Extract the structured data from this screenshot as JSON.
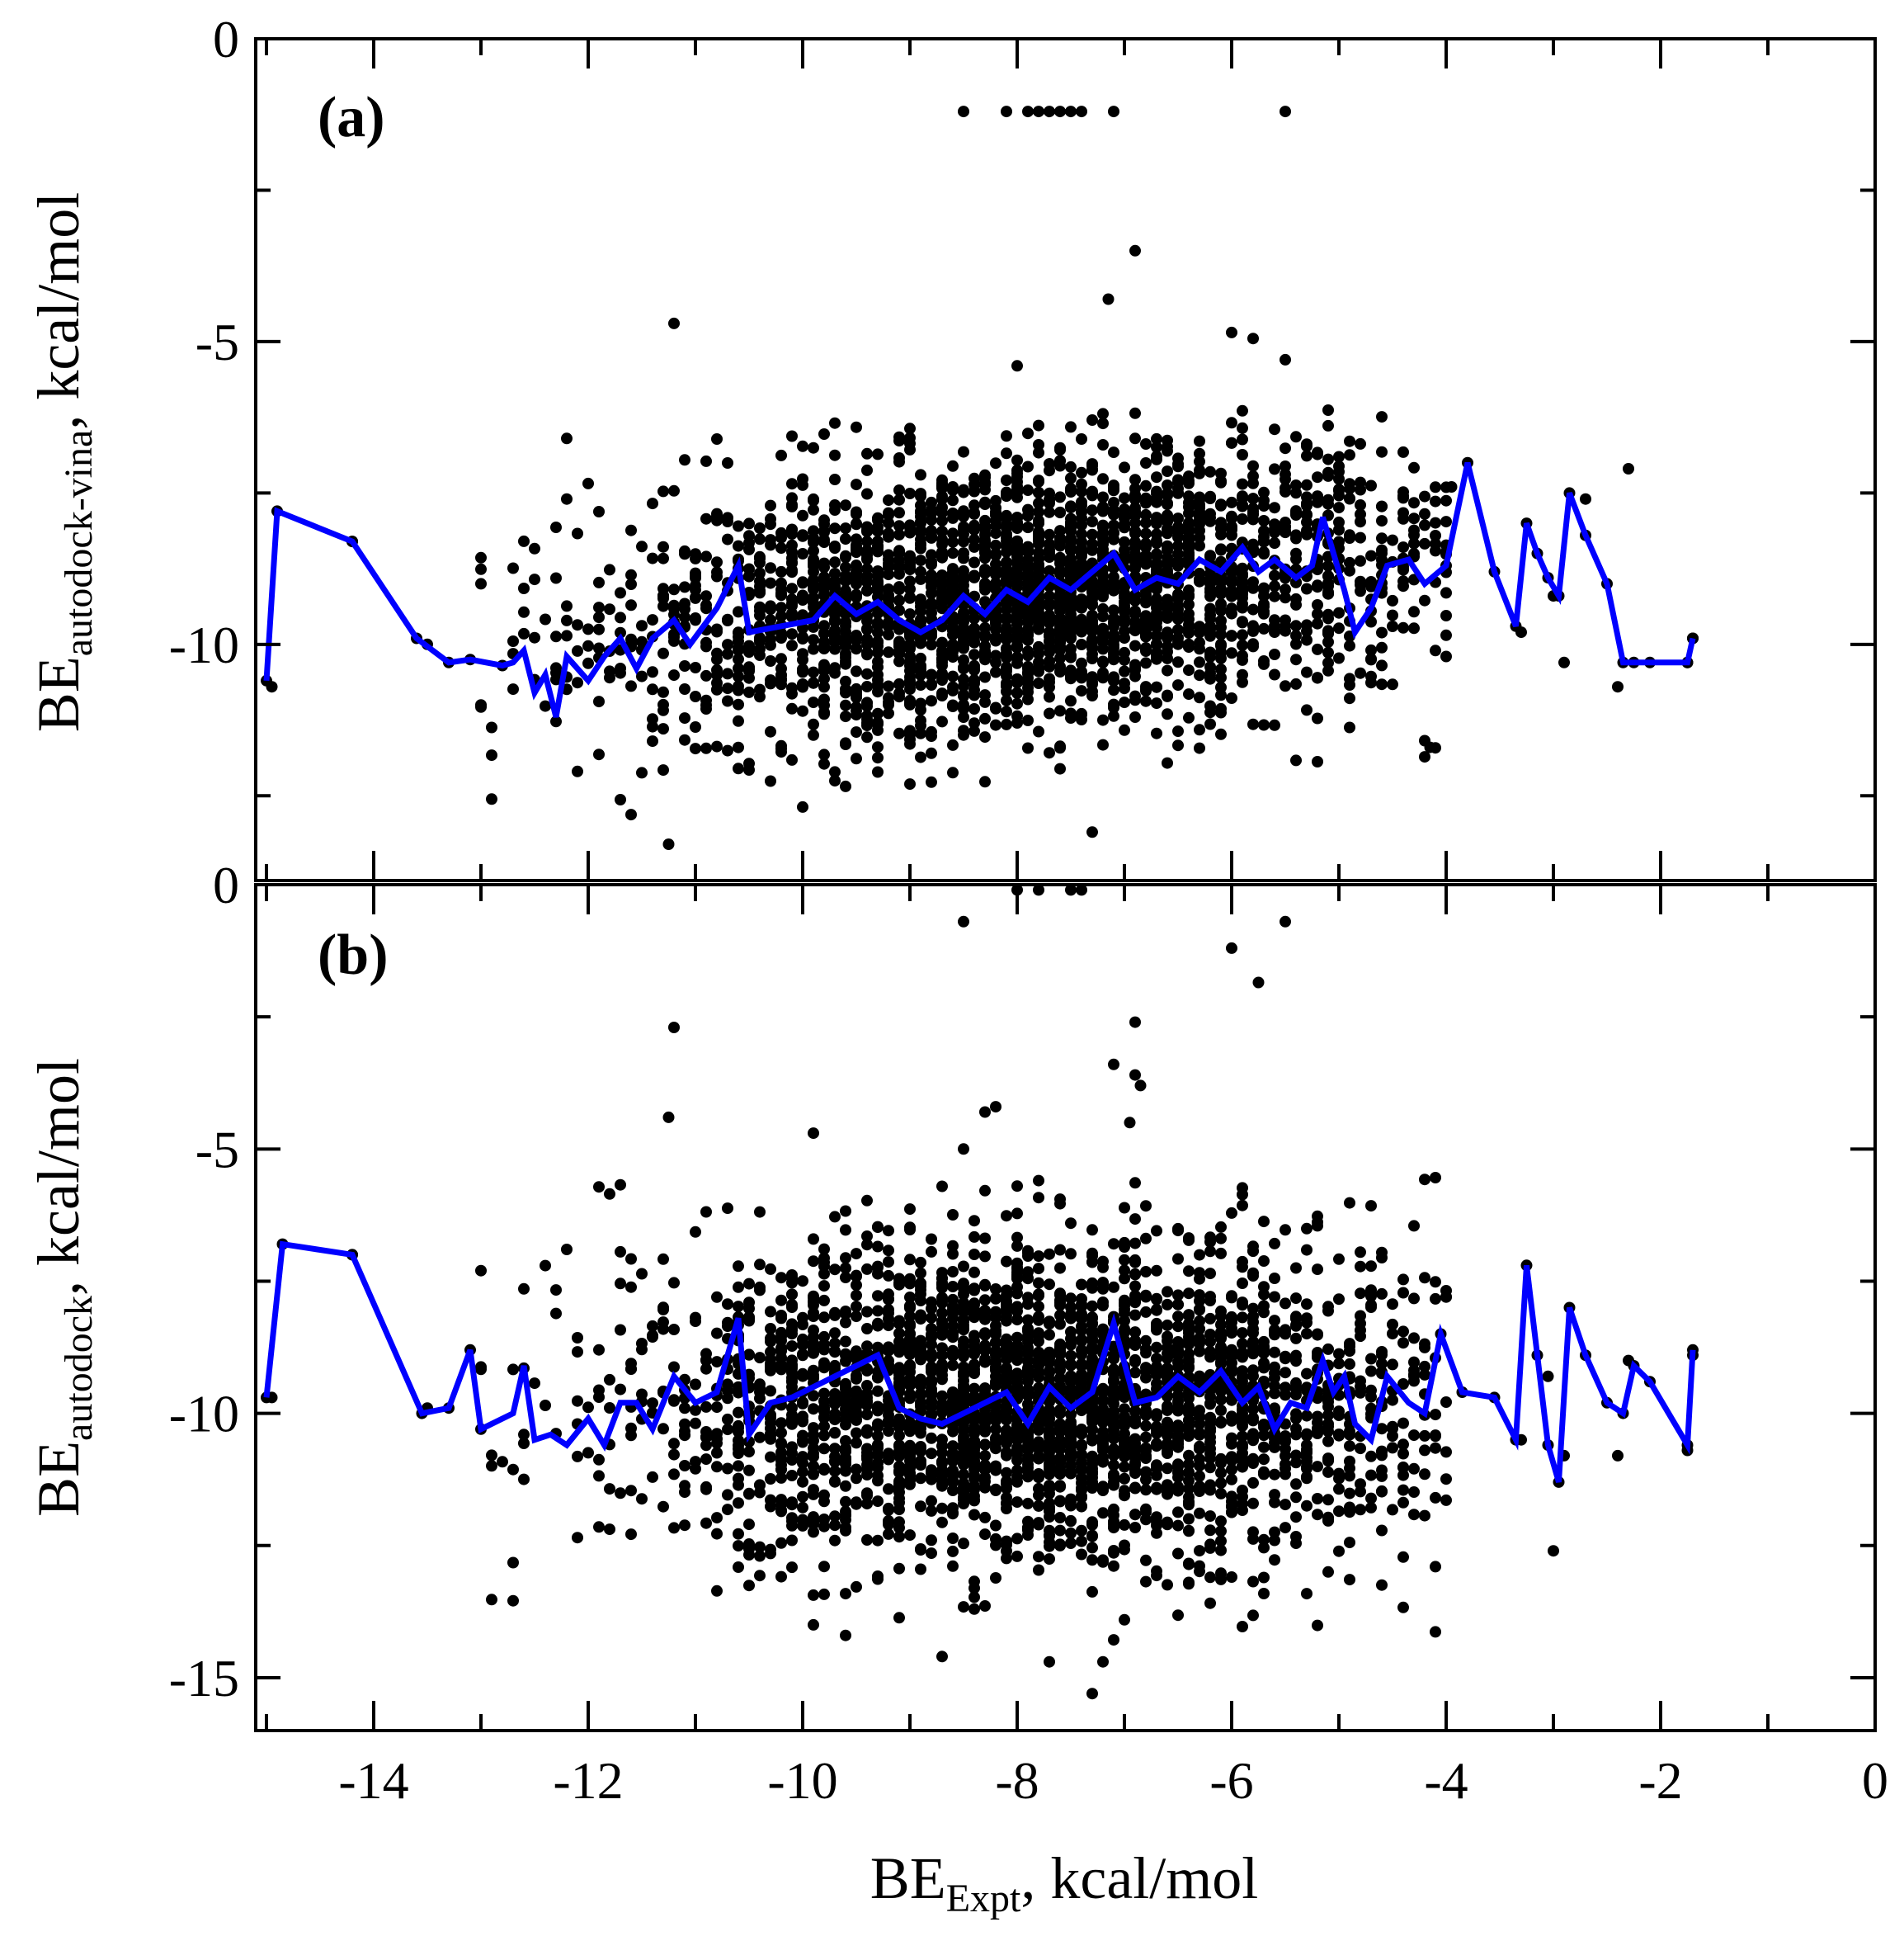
{
  "chart_data": [
    {
      "type": "scatter",
      "panel_label": "(a)",
      "ylabel": "BE",
      "ylabel_sub": "autodock-vina",
      "ylabel_suffix": ", kcal/mol",
      "ylim": [
        -13.9,
        0
      ],
      "yticks": [
        0,
        -5,
        -10
      ],
      "xlim": [
        -15.1,
        0
      ],
      "grid": false,
      "scatter": {
        "seed": 11,
        "count": 2600,
        "x_mean": -7.9,
        "x_sd": 1.9,
        "y_intercept": -9.1,
        "y_slope": 0.17,
        "y_sd": 1.15,
        "y_min": -12.9,
        "y_max": -6.1
      },
      "outliers": [
        [
          -8.5,
          -1.2
        ],
        [
          -8.1,
          -1.2
        ],
        [
          -7.9,
          -1.2
        ],
        [
          -7.8,
          -1.2
        ],
        [
          -7.7,
          -1.2
        ],
        [
          -7.6,
          -1.2
        ],
        [
          -7.5,
          -1.2
        ],
        [
          -7.4,
          -1.2
        ],
        [
          -7.1,
          -1.2
        ],
        [
          -5.5,
          -1.2
        ],
        [
          -6.9,
          -3.5
        ],
        [
          -7.15,
          -4.3
        ],
        [
          -11.2,
          -4.7
        ],
        [
          -6.0,
          -4.85
        ],
        [
          -5.8,
          -4.95
        ],
        [
          -8.0,
          -5.4
        ],
        [
          -5.5,
          -5.3
        ],
        [
          -7.3,
          -13.1
        ],
        [
          -14.95,
          -10.7
        ],
        [
          -14.2,
          -8.3
        ],
        [
          -13.5,
          -10.0
        ],
        [
          -13.0,
          -9.0
        ],
        [
          -13.0,
          -11.0
        ],
        [
          -12.2,
          -6.6
        ],
        [
          -12.2,
          -7.6
        ],
        [
          -11.25,
          -13.3
        ],
        [
          -3.95,
          -7.4
        ],
        [
          -3.3,
          -9.8
        ],
        [
          -3.0,
          -9.2
        ],
        [
          -2.7,
          -7.6
        ],
        [
          -2.3,
          -7.1
        ],
        [
          -2.4,
          -10.7
        ],
        [
          -2.9,
          -10.3
        ],
        [
          -1.75,
          -10.3
        ],
        [
          -1.7,
          -9.9
        ],
        [
          -4.15,
          -11.7
        ],
        [
          -4.0,
          -10.2
        ]
      ],
      "line": {
        "name": "moving average",
        "color": "#0000ff",
        "x": [
          -15.0,
          -14.9,
          -14.2,
          -13.6,
          -13.3,
          -13.1,
          -12.8,
          -12.7,
          -12.6,
          -12.5,
          -12.4,
          -12.3,
          -12.2,
          -12.0,
          -11.85,
          -11.7,
          -11.55,
          -11.4,
          -11.2,
          -11.05,
          -10.8,
          -10.6,
          -10.5,
          -10.2,
          -9.9,
          -9.7,
          -9.5,
          -9.3,
          -9.1,
          -8.9,
          -8.7,
          -8.5,
          -8.3,
          -8.1,
          -7.9,
          -7.7,
          -7.5,
          -7.3,
          -7.1,
          -6.9,
          -6.7,
          -6.5,
          -6.3,
          -6.1,
          -5.9,
          -5.75,
          -5.6,
          -5.4,
          -5.25,
          -5.15,
          -5.05,
          -4.95,
          -4.85,
          -4.7,
          -4.55,
          -4.35,
          -4.2,
          -4.0,
          -3.8,
          -3.55,
          -3.35,
          -3.25,
          -3.15,
          -3.05,
          -2.95,
          -2.85,
          -2.7,
          -2.5,
          -2.35,
          -2.25,
          -2.1,
          -1.75,
          -1.7
        ],
        "y": [
          -10.6,
          -7.8,
          -8.3,
          -9.9,
          -10.3,
          -10.25,
          -10.35,
          -10.3,
          -10.1,
          -10.8,
          -10.5,
          -11.2,
          -10.2,
          -10.6,
          -10.2,
          -9.9,
          -10.4,
          -9.9,
          -9.6,
          -10.0,
          -9.4,
          -8.7,
          -9.8,
          -9.7,
          -9.6,
          -9.2,
          -9.5,
          -9.3,
          -9.6,
          -9.8,
          -9.6,
          -9.2,
          -9.5,
          -9.1,
          -9.3,
          -8.9,
          -9.1,
          -8.8,
          -8.5,
          -9.1,
          -8.9,
          -9.0,
          -8.6,
          -8.8,
          -8.4,
          -8.8,
          -8.6,
          -8.9,
          -8.7,
          -7.9,
          -8.5,
          -9.1,
          -9.8,
          -9.4,
          -8.7,
          -8.6,
          -9.0,
          -8.7,
          -7.0,
          -8.8,
          -9.7,
          -8.0,
          -8.5,
          -8.9,
          -9.2,
          -7.5,
          -8.2,
          -9.0,
          -10.3,
          -10.3,
          -10.3,
          -10.3,
          -9.9
        ]
      }
    },
    {
      "type": "scatter",
      "panel_label": "(b)",
      "ylabel": "BE",
      "ylabel_sub": "autodock",
      "ylabel_suffix": ", kcal/mol",
      "ylim": [
        -16,
        0
      ],
      "yticks": [
        0,
        -5,
        -10,
        -15
      ],
      "xlim": [
        -15.1,
        0
      ],
      "xticks": [
        -14,
        -12,
        -10,
        -8,
        -6,
        -4,
        -2,
        0
      ],
      "xlabel": "BE",
      "xlabel_sub": "Expt",
      "xlabel_suffix": ", kcal/mol",
      "grid": false,
      "scatter": {
        "seed": 29,
        "count": 2800,
        "x_mean": -7.8,
        "x_sd": 1.9,
        "y_intercept": -9.8,
        "y_slope": 0.0,
        "y_sd": 1.55,
        "y_min": -14.4,
        "y_max": -5.5
      },
      "outliers": [
        [
          -8.0,
          -0.1
        ],
        [
          -7.8,
          -0.1
        ],
        [
          -7.5,
          -0.1
        ],
        [
          -7.4,
          -0.1
        ],
        [
          -8.5,
          -0.7
        ],
        [
          -5.5,
          -0.7
        ],
        [
          -6.0,
          -1.2
        ],
        [
          -5.75,
          -1.85
        ],
        [
          -11.2,
          -2.7
        ],
        [
          -6.9,
          -2.6
        ],
        [
          -7.1,
          -3.4
        ],
        [
          -6.9,
          -3.6
        ],
        [
          -6.85,
          -3.8
        ],
        [
          -11.25,
          -4.4
        ],
        [
          -8.2,
          -4.2
        ],
        [
          -8.3,
          -4.3
        ],
        [
          -6.95,
          -4.5
        ],
        [
          -9.9,
          -4.7
        ],
        [
          -8.5,
          -5.0
        ],
        [
          -7.3,
          -15.3
        ],
        [
          -9.6,
          -14.2
        ],
        [
          -8.7,
          -14.6
        ],
        [
          -7.7,
          -14.7
        ],
        [
          -7.2,
          -14.7
        ],
        [
          -14.95,
          -9.7
        ],
        [
          -14.2,
          -7.0
        ],
        [
          -13.5,
          -9.9
        ],
        [
          -13.0,
          -7.3
        ],
        [
          -12.2,
          -6.9
        ],
        [
          -2.9,
          -10.8
        ],
        [
          -3.0,
          -12.6
        ],
        [
          -3.05,
          -9.3
        ],
        [
          -3.3,
          -10.5
        ],
        [
          -2.4,
          -10.8
        ],
        [
          -2.3,
          -9.0
        ],
        [
          -1.75,
          -10.7
        ],
        [
          -1.7,
          -8.9
        ],
        [
          -4.1,
          -12.9
        ]
      ],
      "line": {
        "name": "moving average",
        "color": "#0000ff",
        "x": [
          -15.0,
          -14.85,
          -14.2,
          -13.55,
          -13.3,
          -13.1,
          -13.0,
          -12.7,
          -12.6,
          -12.5,
          -12.35,
          -12.2,
          -12.0,
          -11.85,
          -11.7,
          -11.55,
          -11.4,
          -11.2,
          -11.0,
          -10.8,
          -10.6,
          -10.5,
          -10.3,
          -10.1,
          -9.9,
          -9.7,
          -9.5,
          -9.3,
          -9.1,
          -8.9,
          -8.7,
          -8.5,
          -8.3,
          -8.1,
          -7.9,
          -7.7,
          -7.5,
          -7.3,
          -7.1,
          -6.9,
          -6.7,
          -6.5,
          -6.3,
          -6.1,
          -5.9,
          -5.75,
          -5.6,
          -5.45,
          -5.3,
          -5.15,
          -5.05,
          -4.95,
          -4.85,
          -4.7,
          -4.55,
          -4.35,
          -4.2,
          -4.05,
          -3.85,
          -3.55,
          -3.35,
          -3.25,
          -3.15,
          -3.05,
          -2.95,
          -2.85,
          -2.7,
          -2.5,
          -2.35,
          -2.25,
          -2.1,
          -1.75,
          -1.7
        ],
        "y": [
          -9.7,
          -6.8,
          -7.0,
          -10.0,
          -9.9,
          -8.8,
          -10.3,
          -10.0,
          -9.1,
          -10.5,
          -10.4,
          -10.6,
          -10.1,
          -10.6,
          -9.8,
          -9.8,
          -10.3,
          -9.3,
          -9.8,
          -9.6,
          -8.2,
          -10.4,
          -9.8,
          -9.7,
          -9.5,
          -9.3,
          -9.1,
          -8.9,
          -9.9,
          -10.1,
          -10.2,
          -10.0,
          -9.8,
          -9.6,
          -10.2,
          -9.5,
          -9.9,
          -9.6,
          -8.3,
          -9.8,
          -9.7,
          -9.3,
          -9.6,
          -9.2,
          -9.8,
          -9.5,
          -10.3,
          -9.8,
          -9.9,
          -9.0,
          -9.6,
          -9.3,
          -10.2,
          -10.5,
          -9.3,
          -9.8,
          -10.0,
          -8.5,
          -9.6,
          -9.7,
          -10.5,
          -7.2,
          -8.9,
          -10.6,
          -11.3,
          -8.0,
          -8.9,
          -9.8,
          -10.0,
          -9.1,
          -9.4,
          -10.6,
          -8.8
        ]
      }
    }
  ]
}
